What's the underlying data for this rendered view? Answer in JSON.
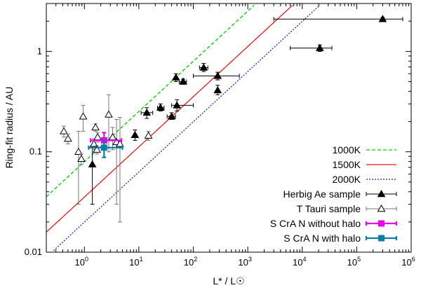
{
  "chart_data": {
    "type": "scatter",
    "xlabel": "L* / L☉",
    "ylabel": "Ring-fit radius / AU",
    "xscale": "log",
    "yscale": "log",
    "xlim": [
      0.2,
      1000000
    ],
    "ylim": [
      0.01,
      3
    ],
    "xticks": [
      {
        "value": 1,
        "base": "10",
        "exp": "0"
      },
      {
        "value": 10,
        "base": "10",
        "exp": "1"
      },
      {
        "value": 100,
        "base": "10",
        "exp": "2"
      },
      {
        "value": 1000,
        "base": "10",
        "exp": "3"
      },
      {
        "value": 10000,
        "base": "10",
        "exp": "4"
      },
      {
        "value": 100000,
        "base": "10",
        "exp": "5"
      },
      {
        "value": 1000000,
        "base": "10",
        "exp": "6"
      }
    ],
    "yticks": [
      {
        "value": 0.01,
        "label": "0.01"
      },
      {
        "value": 0.1,
        "label": "0.1"
      },
      {
        "value": 1,
        "label": "1"
      }
    ],
    "legend_position": "bottom-right",
    "lines": [
      {
        "name": "1000K",
        "color": "#00cc00",
        "dash": "dashed",
        "coef": 0.0797
      },
      {
        "name": "1500K",
        "color": "#e41a1c",
        "dash": "solid",
        "coef": 0.0354
      },
      {
        "name": "2000K",
        "color": "#1f28b4",
        "dash": "dotted",
        "coef": 0.0199
      }
    ],
    "series": [
      {
        "name": "Herbig Ae sample",
        "marker": "filled-triangle",
        "color": "#000000",
        "points": [
          {
            "x": 1.4,
            "y": 0.075,
            "yerr": [
              0.03,
              0.115
            ]
          },
          {
            "x": 8.5,
            "y": 0.147,
            "yerr": [
              0.13,
              0.165
            ]
          },
          {
            "x": 14,
            "y": 0.245,
            "xerr": [
              11,
              18
            ],
            "yerr": [
              0.215,
              0.275
            ]
          },
          {
            "x": 25,
            "y": 0.275,
            "xerr": [
              22,
              29
            ],
            "yerr": [
              0.255,
              0.3
            ]
          },
          {
            "x": 40,
            "y": 0.225,
            "xerr": [
              33,
              47
            ],
            "yerr": [
              0.21,
              0.245
            ]
          },
          {
            "x": 48,
            "y": 0.55,
            "yerr": [
              0.5,
              0.6
            ]
          },
          {
            "x": 50,
            "y": 0.29,
            "xerr": [
              40,
              100
            ],
            "yerr": [
              0.255,
              0.33
            ]
          },
          {
            "x": 65,
            "y": 0.5,
            "xerr": [
              55,
              75
            ],
            "yerr": [
              0.47,
              0.53
            ]
          },
          {
            "x": 155,
            "y": 0.69,
            "xerr": [
              130,
              185
            ],
            "yerr": [
              0.63,
              0.76
            ]
          },
          {
            "x": 280,
            "y": 0.57,
            "xerr": [
              100,
              700
            ],
            "yerr": [
              0.52,
              0.62
            ]
          },
          {
            "x": 280,
            "y": 0.41,
            "yerr": [
              0.37,
              0.46
            ]
          },
          {
            "x": 21000,
            "y": 1.08,
            "xerr": [
              6000,
              35000
            ],
            "yerr": [
              1.0,
              1.16
            ]
          },
          {
            "x": 300000,
            "y": 2.1,
            "xerr": [
              3000,
              700000
            ],
            "yerr": [
              2.02,
              2.18
            ]
          }
        ]
      },
      {
        "name": "T Tauri sample",
        "marker": "open-triangle",
        "color": "#000000",
        "points": [
          {
            "x": 0.42,
            "y": 0.16,
            "yerr": [
              0.14,
              0.18
            ]
          },
          {
            "x": 0.5,
            "y": 0.135,
            "yerr": [
              0.12,
              0.15
            ]
          },
          {
            "x": 0.78,
            "y": 0.1,
            "yerr": [
              0.03,
              0.16
            ]
          },
          {
            "x": 0.88,
            "y": 0.085,
            "yerr": [
              0.075,
              0.095
            ]
          },
          {
            "x": 0.95,
            "y": 0.225,
            "yerr": [
              0.16,
              0.29
            ]
          },
          {
            "x": 1.5,
            "y": 0.12,
            "yerr": [
              0.105,
              0.135
            ]
          },
          {
            "x": 1.6,
            "y": 0.175,
            "yerr": [
              0.16,
              0.19
            ]
          },
          {
            "x": 1.7,
            "y": 0.105,
            "yerr": [
              0.095,
              0.115
            ]
          },
          {
            "x": 1.75,
            "y": 0.14,
            "yerr": [
              0.125,
              0.155
            ]
          },
          {
            "x": 2.8,
            "y": 0.235,
            "yerr": [
              0.1,
              0.37
            ]
          },
          {
            "x": 3.3,
            "y": 0.14,
            "yerr": [
              0.105,
              0.175
            ]
          },
          {
            "x": 3.9,
            "y": 0.125,
            "yerr": [
              0.03,
              0.21
            ]
          },
          {
            "x": 4.5,
            "y": 0.12,
            "yerr": [
              0.02,
              0.22
            ]
          },
          {
            "x": 15,
            "y": 0.145,
            "yerr": [
              0.13,
              0.16
            ]
          }
        ]
      },
      {
        "name": "S CrA N without halo",
        "marker": "filled-square",
        "color": "#ee00ee",
        "points": [
          {
            "x": 2.3,
            "y": 0.13,
            "xerr": [
              1.3,
              4.8
            ],
            "yerr": [
              0.105,
              0.155
            ]
          }
        ]
      },
      {
        "name": "S CrA N with halo",
        "marker": "filled-square",
        "color": "#0a7ea4",
        "points": [
          {
            "x": 2.3,
            "y": 0.11,
            "xerr": [
              1.2,
              5.0
            ],
            "yerr": [
              0.088,
              0.132
            ]
          }
        ]
      }
    ]
  }
}
